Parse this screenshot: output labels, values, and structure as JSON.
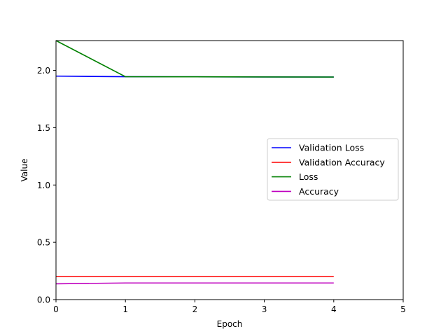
{
  "chart_data": {
    "type": "line",
    "title": "",
    "xlabel": "Epoch",
    "ylabel": "Value",
    "xlim": [
      0,
      5
    ],
    "ylim": [
      0,
      2.26
    ],
    "xticks": [
      "0",
      "1",
      "2",
      "3",
      "4",
      "5"
    ],
    "yticks": [
      "0.0",
      "0.5",
      "1.0",
      "1.5",
      "2.0"
    ],
    "grid": false,
    "legend_position": "center-right",
    "x": [
      0,
      1,
      2,
      3,
      4
    ],
    "series": [
      {
        "name": "Validation Loss",
        "color": "#0000ff",
        "values": [
          1.95,
          1.945,
          1.944,
          1.943,
          1.942
        ]
      },
      {
        "name": "Validation Accuracy",
        "color": "#ff0000",
        "values": [
          0.2,
          0.2,
          0.2,
          0.2,
          0.2
        ]
      },
      {
        "name": "Loss",
        "color": "#008000",
        "values": [
          2.26,
          1.945,
          1.944,
          1.943,
          1.942
        ]
      },
      {
        "name": "Accuracy",
        "color": "#bf00bf",
        "values": [
          0.138,
          0.145,
          0.145,
          0.145,
          0.145
        ]
      }
    ]
  }
}
